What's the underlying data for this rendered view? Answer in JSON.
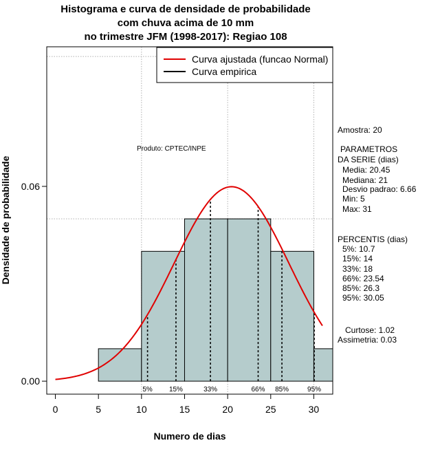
{
  "chart_data": {
    "type": "histogram",
    "title_lines": [
      "Histograma e curva de densidade de probabilidade",
      "com chuva acima de 10 mm",
      "no trimestre JFM (1998-2017): Regiao 108"
    ],
    "xlabel": "Numero de dias",
    "ylabel": "Densidade de probabilidade",
    "xlim": [
      -1,
      32.2
    ],
    "ylim": [
      -0.004,
      0.103
    ],
    "x_ticks": [
      0,
      5,
      10,
      15,
      20,
      25,
      30
    ],
    "y_ticks": [
      0.0,
      0.06
    ],
    "y_tick_labels": [
      "0.00",
      "0.06"
    ],
    "grid_x": [
      10,
      20,
      30
    ],
    "grid_y": [
      0.05,
      0.1
    ],
    "bins": [
      {
        "from": 5,
        "to": 10,
        "density": 0.01
      },
      {
        "from": 10,
        "to": 15,
        "density": 0.04
      },
      {
        "from": 15,
        "to": 20,
        "density": 0.05
      },
      {
        "from": 20,
        "to": 25,
        "density": 0.05
      },
      {
        "from": 25,
        "to": 30,
        "density": 0.04
      },
      {
        "from": 30,
        "to": 35,
        "density": 0.01
      }
    ],
    "normal_curve": {
      "mean": 20.45,
      "sd": 6.66,
      "x_from": 0,
      "x_to": 31
    },
    "percentile_lines": [
      {
        "label": "5%",
        "x": 10.7
      },
      {
        "label": "15%",
        "x": 14
      },
      {
        "label": "33%",
        "x": 18
      },
      {
        "label": "66%",
        "x": 23.54
      },
      {
        "label": "85%",
        "x": 26.3
      },
      {
        "label": "95%",
        "x": 30.05
      }
    ],
    "legend": {
      "position": "top-right",
      "entries": [
        {
          "label": "Curva ajustada (funcao Normal)",
          "color": "#e00000"
        },
        {
          "label": "Curva empirica",
          "color": "#000000"
        }
      ]
    },
    "annotation": "Produto: CPTEC/INPE",
    "bar_color": "#b5cccc",
    "curve_color": "#e00000"
  },
  "stats_panel": {
    "amostra": "Amostra: 20",
    "parametros_title": "PARAMETROS",
    "parametros_subtitle": "DA SERIE (dias)",
    "media": "Media: 20.45",
    "mediana": "Mediana: 21",
    "desvio": "Desvio padrao: 6.66",
    "min": "Min: 5",
    "max": "Max: 31",
    "percentis_title": "PERCENTIS (dias)",
    "p5": "5%: 10.7",
    "p15": "15%: 14",
    "p33": "33%: 18",
    "p66": "66%: 23.54",
    "p85": "85%: 26.3",
    "p95": "95%: 30.05",
    "curtose": "Curtose: 1.02",
    "assimetria": "Assimetria: 0.03"
  }
}
